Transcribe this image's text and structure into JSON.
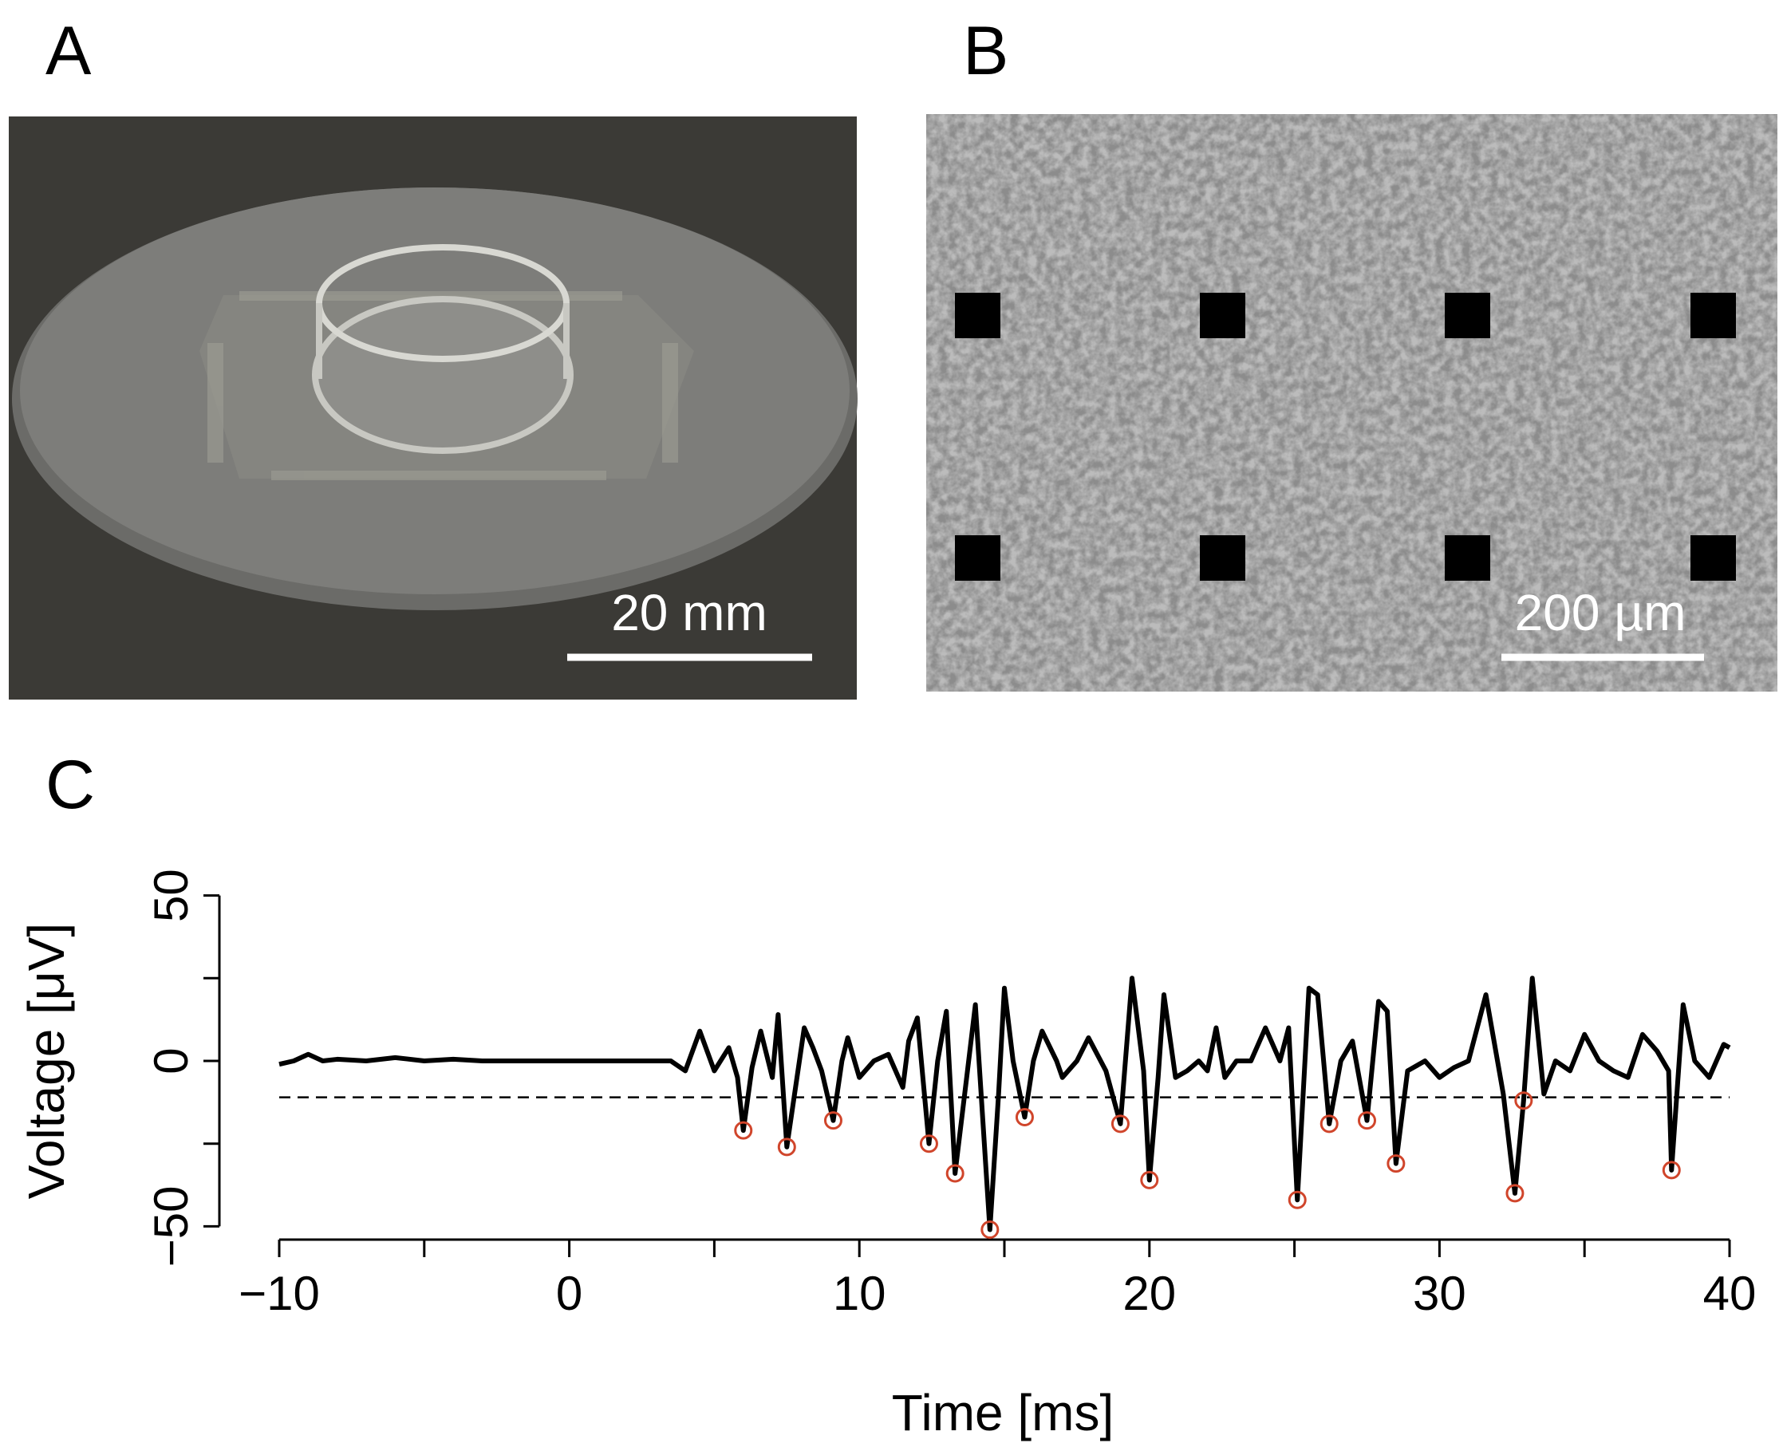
{
  "panels": {
    "A": {
      "label": "A",
      "scale_bar": "20 mm"
    },
    "B": {
      "label": "B",
      "scale_bar": "200 µm"
    },
    "C": {
      "label": "C"
    }
  },
  "chart_data": {
    "type": "line",
    "xlabel": "Time [ms]",
    "ylabel": "Voltage [μV]",
    "color": "#000000",
    "x": [
      -10,
      -9.5,
      -9,
      -8.5,
      -8,
      -7,
      -6,
      -5,
      -4,
      -3,
      3.5,
      4,
      4.5,
      5,
      5.5,
      5.8,
      6,
      6.3,
      6.6,
      7,
      7.2,
      7.5,
      7.9,
      8.1,
      8.4,
      8.7,
      9.1,
      9.4,
      9.6,
      10,
      10.5,
      11,
      11.5,
      11.7,
      12,
      12.4,
      12.7,
      13,
      13.3,
      13.7,
      14,
      14.5,
      14.8,
      15,
      15.3,
      15.7,
      16,
      16.3,
      16.8,
      17,
      17.5,
      17.9,
      18.5,
      19,
      19.4,
      19.8,
      20,
      20.3,
      20.5,
      20.9,
      21.3,
      21.7,
      22,
      22.3,
      22.6,
      23,
      23.5,
      24,
      24.5,
      24.8,
      25.1,
      25.5,
      25.8,
      26.2,
      26.6,
      27,
      27.5,
      27.9,
      28.2,
      28.5,
      28.9,
      29.5,
      30,
      30.5,
      31,
      31.6,
      32.2,
      32.6,
      32.9,
      33.2,
      33.6,
      34,
      34.5,
      35,
      35.5,
      36,
      36.5,
      37,
      37.5,
      37.9,
      38,
      38.4,
      38.8,
      39.3,
      39.8,
      40
    ],
    "values": [
      -1,
      0,
      2,
      0,
      0.5,
      0,
      1,
      0,
      0.5,
      0,
      0,
      -3,
      9,
      -3,
      4,
      -5,
      -21,
      -2,
      9,
      -5,
      14,
      -26,
      -2,
      10,
      4,
      -3,
      -18,
      0,
      7,
      -5,
      0,
      2,
      -8,
      6,
      13,
      -25,
      0,
      15,
      -34,
      -5,
      17,
      -51,
      -10,
      22,
      0,
      -17,
      0,
      9,
      0,
      -5,
      0,
      7,
      -3,
      -19,
      25,
      -3,
      -36,
      -5,
      20,
      -5,
      -3,
      0,
      -3,
      10,
      -5,
      0,
      0,
      10,
      0,
      10,
      -42,
      22,
      20,
      -19,
      0,
      6,
      -18,
      18,
      15,
      -31,
      -3,
      0,
      -5,
      -2,
      0,
      20,
      -10,
      -40,
      -12,
      25,
      -10,
      0,
      -3,
      8,
      0,
      -3,
      -5,
      8,
      3,
      -3,
      -33,
      17,
      0,
      -5,
      5,
      4
    ],
    "spikes": {
      "color": "#d0452b",
      "x": [
        6,
        7.5,
        9.1,
        12.4,
        13.3,
        14.5,
        15.7,
        19,
        20,
        25.1,
        26.2,
        27.5,
        28.5,
        32.6,
        32.9,
        38
      ],
      "values": [
        -21,
        -26,
        -18,
        -25,
        -34,
        -51,
        -17,
        -19,
        -36,
        -42,
        -19,
        -18,
        -31,
        -40,
        -12,
        -33
      ]
    },
    "threshold": -11,
    "xlim": [
      -10,
      40
    ],
    "ylim": [
      -54,
      54
    ],
    "xticks": [
      {
        "value": -10,
        "label": "−10"
      },
      0,
      10,
      20,
      30,
      40
    ],
    "xminor_ticks": [
      -5,
      5,
      15,
      25,
      35
    ],
    "yticks": [
      {
        "value": -50,
        "label": "−50"
      },
      0,
      50
    ],
    "yminor_ticks": [
      -25,
      25
    ]
  }
}
